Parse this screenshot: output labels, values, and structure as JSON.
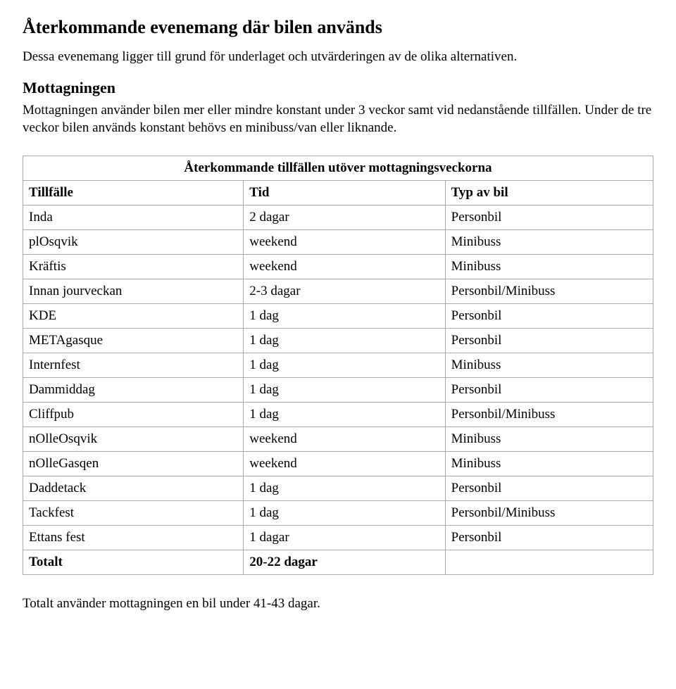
{
  "heading_main": "Återkommande evenemang där bilen används",
  "intro_para": "Dessa evenemang ligger till grund för underlaget och utvärderingen av de olika alternativen.",
  "section_heading": "Mottagningen",
  "section_para": "Mottagningen använder bilen mer eller mindre konstant under 3 veckor samt vid nedanstående tillfällen. Under de tre veckor bilen används konstant behövs en minibuss/van eller liknande.",
  "table": {
    "caption": "Återkommande tillfällen utöver mottagningsveckorna",
    "columns": [
      "Tillfälle",
      "Tid",
      "Typ av bil"
    ],
    "rows": [
      [
        "Inda",
        "2 dagar",
        "Personbil"
      ],
      [
        "plOsqvik",
        "weekend",
        "Minibuss"
      ],
      [
        "Kräftis",
        "weekend",
        "Minibuss"
      ],
      [
        "Innan jourveckan",
        "2-3 dagar",
        "Personbil/Minibuss"
      ],
      [
        "KDE",
        "1 dag",
        "Personbil"
      ],
      [
        "METAgasque",
        "1 dag",
        "Personbil"
      ],
      [
        "Internfest",
        "1 dag",
        "Minibuss"
      ],
      [
        "Dammiddag",
        "1 dag",
        "Personbil"
      ],
      [
        "Cliffpub",
        "1 dag",
        "Personbil/Minibuss"
      ],
      [
        "nOlleOsqvik",
        "weekend",
        "Minibuss"
      ],
      [
        "nOlleGasqen",
        "weekend",
        "Minibuss"
      ],
      [
        "Daddetack",
        "1 dag",
        "Personbil"
      ],
      [
        "Tackfest",
        "1 dag",
        "Personbil/Minibuss"
      ],
      [
        "Ettans fest",
        "1 dagar",
        "Personbil"
      ]
    ],
    "total": [
      "Totalt",
      "20-22 dagar",
      ""
    ]
  },
  "closing_para": "Totalt använder mottagningen en bil under 41-43 dagar.",
  "colors": {
    "text": "#000000",
    "background": "#ffffff",
    "border": "#a8a8a8"
  }
}
